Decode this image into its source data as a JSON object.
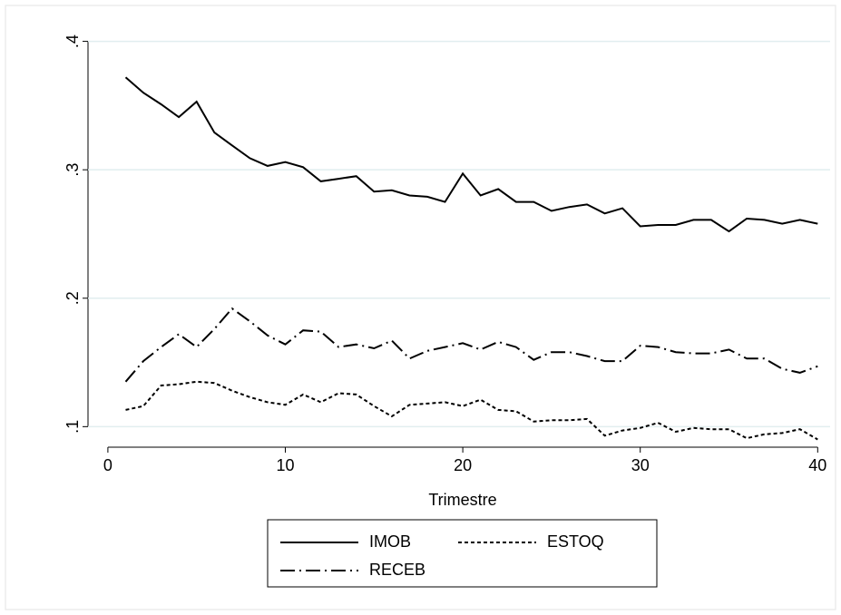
{
  "chart_data": {
    "type": "line",
    "xlabel": "Trimestre",
    "x": [
      1,
      2,
      3,
      4,
      5,
      6,
      7,
      8,
      9,
      10,
      11,
      12,
      13,
      14,
      15,
      16,
      17,
      18,
      19,
      20,
      21,
      22,
      23,
      24,
      25,
      26,
      27,
      28,
      29,
      30,
      31,
      32,
      33,
      34,
      35,
      36,
      37,
      38,
      39,
      40
    ],
    "series": [
      {
        "name": "IMOB",
        "color": "#000000",
        "dash": "solid",
        "values": [
          0.372,
          0.36,
          0.351,
          0.341,
          0.353,
          0.329,
          0.319,
          0.309,
          0.303,
          0.306,
          0.302,
          0.291,
          0.293,
          0.295,
          0.283,
          0.284,
          0.28,
          0.279,
          0.275,
          0.297,
          0.28,
          0.285,
          0.275,
          0.275,
          0.268,
          0.271,
          0.273,
          0.266,
          0.27,
          0.256,
          0.257,
          0.257,
          0.261,
          0.261,
          0.252,
          0.262,
          0.261,
          0.258,
          0.261,
          0.258
        ]
      },
      {
        "name": "ESTOQ",
        "color": "#000000",
        "dash": "short-dash",
        "values": [
          0.113,
          0.116,
          0.132,
          0.133,
          0.135,
          0.134,
          0.128,
          0.123,
          0.119,
          0.117,
          0.125,
          0.119,
          0.126,
          0.125,
          0.116,
          0.108,
          0.117,
          0.118,
          0.119,
          0.116,
          0.121,
          0.113,
          0.112,
          0.104,
          0.105,
          0.105,
          0.106,
          0.093,
          0.097,
          0.099,
          0.103,
          0.096,
          0.099,
          0.098,
          0.098,
          0.091,
          0.094,
          0.095,
          0.098,
          0.09
        ]
      },
      {
        "name": "RECEB",
        "color": "#000000",
        "dash": "dash-dot",
        "values": [
          0.135,
          0.151,
          0.162,
          0.172,
          0.162,
          0.176,
          0.192,
          0.182,
          0.171,
          0.164,
          0.175,
          0.174,
          0.162,
          0.164,
          0.161,
          0.167,
          0.153,
          0.159,
          0.162,
          0.165,
          0.16,
          0.166,
          0.162,
          0.152,
          0.158,
          0.158,
          0.155,
          0.151,
          0.151,
          0.163,
          0.162,
          0.158,
          0.157,
          0.157,
          0.16,
          0.153,
          0.153,
          0.145,
          0.142,
          0.147
        ]
      }
    ],
    "xlim": [
      -1.12,
      40.7
    ],
    "xticks": [
      0,
      10,
      20,
      30,
      40
    ],
    "ylim": [
      0.084,
      0.411
    ],
    "yticks": [
      {
        "value": 0.1,
        "label": ".1"
      },
      {
        "value": 0.2,
        "label": ".2"
      },
      {
        "value": 0.3,
        "label": ".3"
      },
      {
        "value": 0.4,
        "label": ".4"
      }
    ],
    "grid": true,
    "legend": "bottom"
  }
}
